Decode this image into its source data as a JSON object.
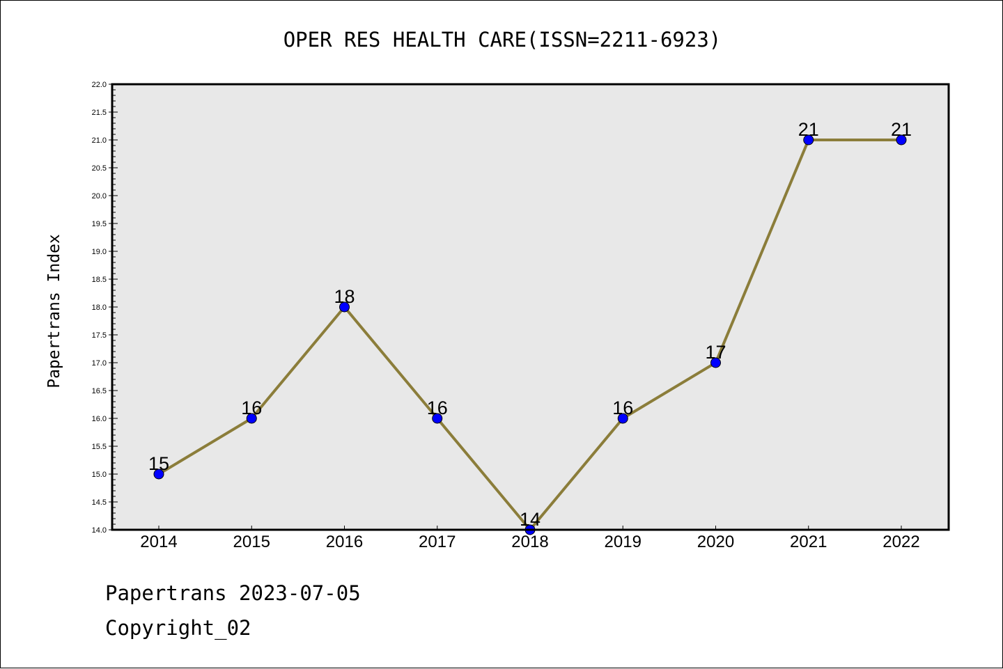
{
  "chart_data": {
    "type": "line",
    "title": "OPER RES HEALTH CARE(ISSN=2211-6923)",
    "xlabel": "",
    "ylabel": "Papertrans Index",
    "categories": [
      "2014",
      "2015",
      "2016",
      "2017",
      "2018",
      "2019",
      "2020",
      "2021",
      "2022"
    ],
    "series": [
      {
        "values": [
          15,
          16,
          18,
          16,
          14,
          16,
          17,
          21,
          21
        ]
      }
    ],
    "data_labels": [
      "15",
      "16",
      "18",
      "16",
      "14",
      "16",
      "17",
      "21",
      "21"
    ],
    "ylim": [
      14.0,
      22.0
    ],
    "yticks": [
      "14.0",
      "14.5",
      "15.0",
      "15.5",
      "16.0",
      "16.5",
      "17.0",
      "17.5",
      "18.0",
      "18.5",
      "19.0",
      "19.5",
      "20.0",
      "20.5",
      "21.0",
      "21.5",
      "22.0"
    ],
    "grid": false,
    "legend": "none",
    "colors": {
      "line": "#8b7d3a",
      "marker": "#0000ff",
      "plot_background": "#e8e8e8"
    }
  },
  "footer": {
    "line1": "Papertrans 2023-07-05",
    "line2": "Copyright_02"
  }
}
